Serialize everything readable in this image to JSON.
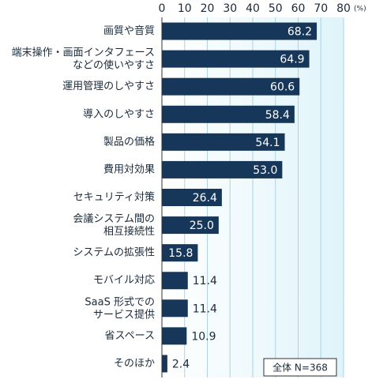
{
  "chart_data": {
    "type": "barh",
    "unit": "(%)",
    "annotation": "全体 N=368",
    "categories": [
      "画質や音質",
      "端末操作・画面インタフェース\nなどの使いやすさ",
      "運用管理のしやすさ",
      "導入のしやすさ",
      "製品の価格",
      "費用対効果",
      "セキュリティ対策",
      "会議システム間の\n相互接続性",
      "システムの拡張性",
      "モバイル対応",
      "SaaS 形式での\nサービス提供",
      "省スペース",
      "そのほか"
    ],
    "values": [
      68.2,
      64.9,
      60.6,
      58.4,
      54.1,
      53.0,
      26.4,
      25.0,
      15.8,
      11.4,
      11.4,
      10.9,
      2.4
    ],
    "value_labels": [
      "68.2",
      "64.9",
      "60.6",
      "58.4",
      "54.1",
      "53.0",
      "26.4",
      "25.0",
      "15.8",
      "11.4",
      "11.4",
      "10.9",
      "2.4"
    ],
    "color": "#17375a",
    "xlim": [
      0,
      80
    ],
    "xticks": [
      0,
      10,
      20,
      30,
      40,
      50,
      60,
      70,
      80
    ],
    "grid": true
  }
}
